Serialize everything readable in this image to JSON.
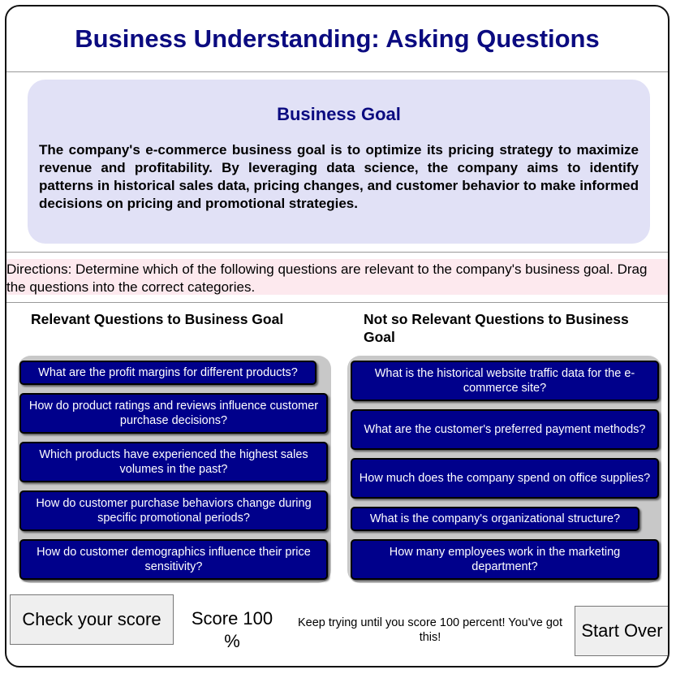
{
  "title": "Business Understanding: Asking Questions",
  "goal": {
    "heading": "Business Goal",
    "text": "The company's e-commerce business goal is to optimize its pricing strategy to maximize revenue and profitability. By leveraging data science, the company aims to identify patterns in historical sales data, pricing changes, and customer behavior to make informed decisions on pricing and promotional strategies."
  },
  "directions": "Directions: Determine which of the following questions are relevant to the company's business goal. Drag the questions into the correct categories.",
  "relevant": {
    "heading": "Relevant Questions to Business Goal",
    "items": [
      "What are the profit margins for different products?",
      "How do product ratings and reviews influence customer purchase decisions?",
      "Which products have experienced the highest sales volumes in the past?",
      "How do customer purchase behaviors change during specific promotional periods?",
      "How do customer demographics influence their price sensitivity?"
    ]
  },
  "not_relevant": {
    "heading": "Not so Relevant Questions to Business Goal",
    "items": [
      "What is the historical website traffic data for the e-commerce site?",
      "What are the customer's preferred payment methods?",
      "How much does the company spend on office supplies?",
      "What is the company's organizational structure?",
      "How many employees work in the marketing department?"
    ]
  },
  "controls": {
    "check_label": "Check your score",
    "score_text": "Score 100 %",
    "message": "Keep trying until you score 100 percent! You've got this!",
    "start_over_label": "Start Over"
  },
  "colors": {
    "title": "#0b0b80",
    "goal_bg": "#e1e1f6",
    "directions_bg": "#fde9ee",
    "question_bg": "#00008b",
    "bin_bg": "#c8c8c8"
  }
}
